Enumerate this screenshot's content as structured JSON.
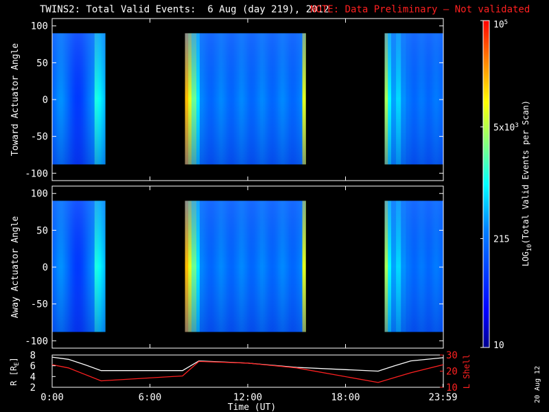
{
  "title": {
    "main": "TWINS2: Total Valid Events:  6 Aug (day 219), 2012",
    "note": "NOTE: Data Preliminary – Not validated"
  },
  "colors": {
    "note": "#ff2020",
    "r_line": "#ffffff",
    "lshell_line": "#ff2020",
    "no_data": "#000000"
  },
  "colorbar": {
    "label_prefix": "LOG",
    "label_sub": "10",
    "label_suffix": "(Total Valid Events per Scan)",
    "ticks": [
      {
        "text": "10",
        "value": 10
      },
      {
        "text": "215",
        "value": 215
      },
      {
        "text": "5x10",
        "sup": "3",
        "value": 5000
      },
      {
        "text": "10",
        "sup": "5",
        "value": 100000
      }
    ]
  },
  "footer": {
    "date_stamp": "20 Aug 12"
  },
  "chart_data": [
    {
      "type": "heatmap",
      "name": "toward",
      "ylabel": "Toward Actuator Angle",
      "ylim": [
        -110,
        110
      ],
      "yticks": [
        100,
        50,
        0,
        -50,
        -100
      ],
      "xlim": [
        0,
        24
      ],
      "data_angle_range": [
        -88,
        90
      ],
      "colorscale": "log10",
      "zlim": [
        10,
        100000
      ],
      "data_blocks": [
        {
          "t_start": 0.0,
          "t_end": 3.25
        },
        {
          "t_start": 8.15,
          "t_end": 15.55
        },
        {
          "t_start": 20.4,
          "t_end": 24.0
        }
      ]
    },
    {
      "type": "heatmap",
      "name": "away",
      "ylabel": "Away Actuator Angle",
      "ylim": [
        -110,
        110
      ],
      "yticks": [
        100,
        50,
        0,
        -50,
        -100
      ],
      "xlim": [
        0,
        24
      ],
      "data_angle_range": [
        -88,
        90
      ],
      "colorscale": "log10",
      "zlim": [
        10,
        100000
      ],
      "data_blocks": [
        {
          "t_start": 0.0,
          "t_end": 3.25
        },
        {
          "t_start": 8.15,
          "t_end": 15.55
        },
        {
          "t_start": 20.4,
          "t_end": 24.0
        }
      ]
    },
    {
      "type": "line",
      "name": "orbit",
      "xlabel": "Time (UT)",
      "xlim": [
        0,
        24
      ],
      "xticks": [
        {
          "text": "0:00",
          "value": 0
        },
        {
          "text": "6:00",
          "value": 6
        },
        {
          "text": "12:00",
          "value": 12
        },
        {
          "text": "18:00",
          "value": 18
        },
        {
          "text": "23:59",
          "value": 23.98
        }
      ],
      "ylabel_left": "R [R",
      "ylabel_left_sub": "E",
      "ylabel_left_end": "]",
      "ylim_left": [
        2,
        8
      ],
      "yticks_left": [
        2,
        4,
        6,
        8
      ],
      "ylabel_right": "L Shell",
      "ylim_right": [
        10,
        30
      ],
      "yticks_right": [
        10,
        20,
        30
      ],
      "series": [
        {
          "axis": "left",
          "x": [
            0,
            1,
            2,
            3,
            8,
            9,
            12,
            15,
            20,
            21,
            22,
            24
          ],
          "y": [
            7.6,
            7.2,
            6.2,
            5.1,
            5.1,
            6.9,
            6.5,
            5.7,
            5.0,
            6.0,
            6.9,
            7.5
          ]
        },
        {
          "axis": "right",
          "x": [
            0,
            1,
            2,
            3,
            8,
            9,
            12,
            15,
            20,
            21,
            22,
            24
          ],
          "y": [
            24,
            22,
            18,
            14,
            17,
            26,
            25,
            22,
            13,
            16,
            19,
            24
          ]
        }
      ]
    }
  ]
}
